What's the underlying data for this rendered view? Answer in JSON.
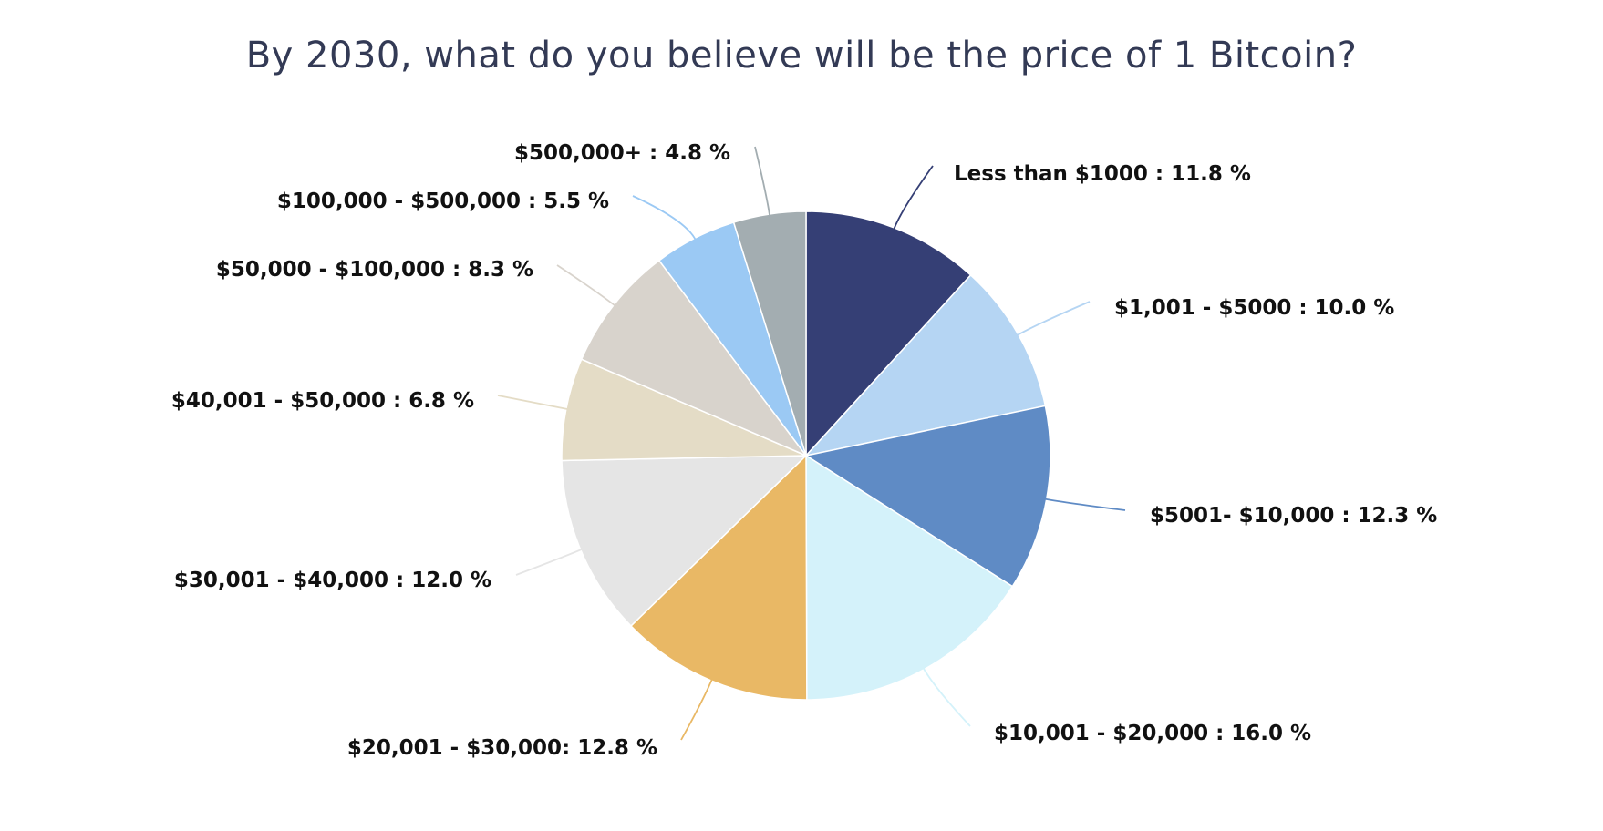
{
  "chart_data": {
    "type": "pie",
    "title": "By 2030, what do you believe will be the price of 1 Bitcoin?",
    "slices": [
      {
        "label": "Less than $1000 : 11.8 %",
        "value": 11.8,
        "color": "#353f75"
      },
      {
        "label": "$1,001 - $5000 : 10.0 %",
        "value": 10.0,
        "color": "#b5d5f3"
      },
      {
        "label": "$5001- $10,000 : 12.3 %",
        "value": 12.3,
        "color": "#5f8bc5"
      },
      {
        "label": "$10,001 - $20,000 : 16.0 %",
        "value": 16.0,
        "color": "#d4f2fa"
      },
      {
        "label": "$20,001 - $30,000: 12.8 %",
        "value": 12.8,
        "color": "#e9b865"
      },
      {
        "label": "$30,001 - $40,000 : 12.0 %",
        "value": 12.0,
        "color": "#e5e5e5"
      },
      {
        "label": "$40,001 - $50,000 : 6.8 %",
        "value": 6.8,
        "color": "#e4dcc6"
      },
      {
        "label": "$50,000 - $100,000 : 8.3 %",
        "value": 8.3,
        "color": "#d8d3cc"
      },
      {
        "label": "$100,000 - $500,000 : 5.5 %",
        "value": 5.5,
        "color": "#9bc9f4"
      },
      {
        "label": "$500,000+ : 4.8 %",
        "value": 4.8,
        "color": "#a3adb1"
      }
    ]
  }
}
